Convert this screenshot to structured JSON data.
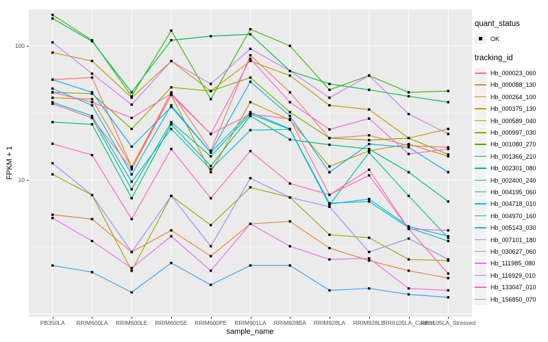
{
  "figure": {
    "background": "#FFFFFF",
    "panel_background": "#EBEBEB",
    "grid_color": "#FFFFFF",
    "axis_text_color": "#4D4D4D",
    "tick_color": "#333333",
    "legend_key_background": "#F2F2F2"
  },
  "axes": {
    "x_title": "sample_name",
    "y_title": "FPKM + 1",
    "y_tick_labels": [
      "100",
      "10"
    ]
  },
  "legend": {
    "quant_title": "quant_status",
    "ok_label": "OK",
    "ok_marker": "black-square-point",
    "tracking_title": "tracking_id"
  },
  "chart_data": {
    "type": "line",
    "title": "",
    "xlabel": "sample_name",
    "ylabel": "FPKM + 1",
    "y_scale": "log10",
    "y_major_breaks": [
      100,
      10,
      1
    ],
    "y_minor_breaks": [
      31.62,
      3.162
    ],
    "ylim": [
      0.95,
      190
    ],
    "grid": true,
    "legend_position": "right",
    "point_marker": {
      "shape": "square",
      "color": "#000000",
      "size": 3.4
    },
    "categories": [
      "PB350LA",
      "RRIM600LA",
      "RRIM600LE",
      "RRIM600SE",
      "RRIM600PE",
      "RRIM901LA",
      "RRIM928BA",
      "RRIM928LA",
      "RRIM928LE",
      "RRII105LA_Control",
      "RRII105LA_Stressed"
    ],
    "series": [
      {
        "name": "Hb_000023_060",
        "color": "#F8766D",
        "values": [
          56,
          58,
          12.5,
          45,
          16.5,
          85,
          45,
          20.5,
          21.5,
          18,
          17.5
        ]
      },
      {
        "name": "Hb_000088_130",
        "color": "#EA8331",
        "values": [
          5.5,
          5.1,
          2.9,
          4.2,
          2.7,
          4.7,
          4.9,
          3.1,
          2.5,
          2.1,
          1.85
        ]
      },
      {
        "name": "Hb_000264_100",
        "color": "#D89000",
        "values": [
          41,
          40,
          12.5,
          43,
          11.4,
          38,
          28,
          12.6,
          16.5,
          18.5,
          15
        ]
      },
      {
        "name": "Hb_000375_130",
        "color": "#C09B00",
        "values": [
          89,
          77,
          41,
          77,
          46,
          77,
          60,
          36,
          33.5,
          20.5,
          24
        ]
      },
      {
        "name": "Hb_000589_040",
        "color": "#A3A500",
        "values": [
          11,
          7.7,
          2.1,
          7.6,
          4.6,
          8.8,
          7.4,
          3.9,
          3.7,
          2.55,
          2.5
        ]
      },
      {
        "name": "Hb_000997_030",
        "color": "#7CAE00",
        "values": [
          45,
          44,
          24,
          49,
          46,
          58,
          32,
          20.5,
          19.8,
          20.5,
          15.5
        ]
      },
      {
        "name": "Hb_001080_270",
        "color": "#39B600",
        "values": [
          170,
          110,
          42,
          130,
          40,
          133,
          100,
          47,
          60,
          45,
          46
        ]
      },
      {
        "name": "Hb_001366_210",
        "color": "#00BB4E",
        "values": [
          160,
          108,
          45,
          110,
          118,
          122,
          65,
          52,
          47,
          42,
          38
        ]
      },
      {
        "name": "Hb_002301_080",
        "color": "#00BF7D",
        "values": [
          27,
          26,
          7.3,
          26,
          12.7,
          30,
          20,
          18.3,
          17,
          11.4,
          6.9
        ]
      },
      {
        "name": "Hb_002400_240",
        "color": "#00C1A3",
        "values": [
          37,
          29,
          8.5,
          27,
          15,
          31,
          23.8,
          6.5,
          16,
          7.6,
          3.7
        ]
      },
      {
        "name": "Hb_004195_060",
        "color": "#00BFC4",
        "values": [
          38,
          30,
          9.7,
          24,
          12,
          23.5,
          23.8,
          6.7,
          6.9,
          4.4,
          3.5
        ]
      },
      {
        "name": "Hb_004718_010",
        "color": "#00BAE0",
        "values": [
          48,
          36,
          11,
          36,
          16,
          32,
          24,
          6.6,
          7.2,
          4.5,
          3.8
        ]
      },
      {
        "name": "Hb_004970_160",
        "color": "#00B0F6",
        "values": [
          56,
          45,
          17.7,
          35,
          16,
          54,
          30,
          11.4,
          18.5,
          17.5,
          11.4
        ]
      },
      {
        "name": "Hb_005143_030",
        "color": "#35A2FF",
        "values": [
          2.3,
          2.05,
          1.45,
          2.4,
          1.65,
          2.3,
          2.3,
          1.5,
          1.55,
          1.4,
          1.33
        ]
      },
      {
        "name": "Hb_007101_180",
        "color": "#9590FF",
        "values": [
          13.3,
          7.7,
          2.9,
          7.6,
          3.2,
          10.3,
          7.4,
          6.3,
          2.9,
          3.65,
          2.55
        ]
      },
      {
        "name": "Hb_030627_060",
        "color": "#C77CFF",
        "values": [
          106,
          62,
          36.4,
          77,
          52,
          95,
          65,
          41,
          60,
          31,
          22
        ]
      },
      {
        "name": "Hb_111985_080",
        "color": "#E76BF3",
        "values": [
          5.2,
          3.5,
          2.2,
          3.8,
          2.1,
          4.7,
          3.2,
          2.55,
          2.6,
          1.55,
          1.5
        ]
      },
      {
        "name": "Hb_116929_010",
        "color": "#FA62DB",
        "values": [
          45,
          38,
          29,
          44,
          22,
          80,
          38,
          23.8,
          28.7,
          15.6,
          17
        ]
      },
      {
        "name": "Hb_133047_010",
        "color": "#FF61CC",
        "values": [
          18.6,
          15.3,
          5.1,
          17,
          7.3,
          16.4,
          9.4,
          7.75,
          10.8,
          4.3,
          4.2
        ]
      },
      {
        "name": "Hb_156850_070",
        "color": "#FF6A98",
        "values": [
          37,
          29,
          12,
          43,
          22,
          31,
          28.5,
          7.75,
          11.9,
          4.3,
          2.0
        ]
      }
    ]
  }
}
